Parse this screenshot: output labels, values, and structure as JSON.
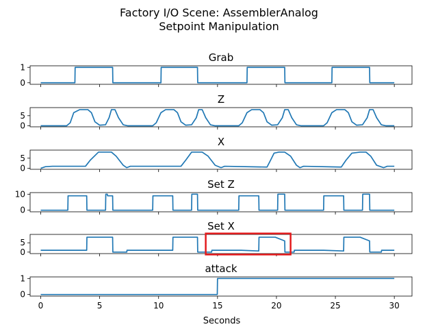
{
  "chart_data": {
    "type": "line",
    "title_lines": [
      "Factory I/O Scene: AssemblerAnalog",
      "Setpoint Manipulation"
    ],
    "xlabel": "Seconds",
    "xlim": [
      -0.9,
      31.5
    ],
    "xticks": [
      0,
      5,
      10,
      15,
      20,
      25,
      30
    ],
    "line_color": "#1f77b4",
    "highlight_color": "#e31a1c",
    "highlight": {
      "subplot": "Set X",
      "x": [
        14,
        21.2
      ],
      "y": [
        -1.3,
        10
      ]
    },
    "subplots": [
      {
        "title": "Grab",
        "ylim": [
          -0.1,
          1.1
        ],
        "yticks": [
          0,
          1
        ],
        "x": [
          0,
          2.9,
          2.92,
          6.1,
          6.12,
          10.2,
          10.22,
          13.3,
          13.32,
          17.5,
          17.52,
          20.7,
          20.72,
          24.7,
          24.72,
          27.9,
          27.92,
          30
        ],
        "y": [
          0,
          0,
          1,
          1,
          0,
          0,
          1,
          1,
          0,
          0,
          1,
          1,
          0,
          0,
          1,
          1,
          0,
          0
        ]
      },
      {
        "title": "Z",
        "ylim": [
          -0.5,
          9
        ],
        "yticks": [
          0,
          5
        ],
        "x": [
          0,
          2.2,
          2.5,
          2.8,
          3.3,
          4.0,
          4.3,
          4.6,
          5.0,
          5.5,
          5.8,
          6.0,
          6.3,
          6.6,
          7.0,
          7.4,
          9.5,
          9.8,
          10.2,
          10.6,
          11.3,
          11.6,
          11.9,
          12.3,
          12.8,
          13.2,
          13.4,
          13.7,
          14.0,
          14.4,
          14.8,
          16.8,
          17.1,
          17.5,
          17.9,
          18.6,
          18.9,
          19.2,
          19.6,
          20.1,
          20.5,
          20.7,
          21.0,
          21.3,
          21.7,
          22.1,
          24.0,
          24.3,
          24.7,
          25.1,
          25.8,
          26.1,
          26.4,
          26.8,
          27.3,
          27.7,
          27.9,
          28.2,
          28.5,
          28.9,
          29.3,
          30
        ],
        "y": [
          0,
          0,
          1.5,
          6.5,
          8,
          8,
          6.5,
          2,
          0.3,
          0.5,
          4,
          8,
          8,
          4,
          0.5,
          0,
          0,
          1.5,
          6.5,
          8,
          8,
          6.5,
          2,
          0.3,
          0.5,
          4,
          8,
          8,
          4,
          0.5,
          0,
          0,
          1.5,
          6.5,
          8,
          8,
          6.5,
          2,
          0.3,
          0.5,
          4,
          8,
          8,
          4,
          0.5,
          0,
          0,
          1.5,
          6.5,
          8,
          8,
          6.5,
          2,
          0.3,
          0.5,
          4,
          8,
          8,
          4,
          0.5,
          0,
          0
        ]
      },
      {
        "title": "X",
        "ylim": [
          -0.5,
          9
        ],
        "yticks": [
          0,
          5
        ],
        "x": [
          0,
          0.4,
          1.0,
          3.8,
          4.2,
          4.9,
          6.0,
          6.4,
          7.0,
          7.3,
          7.6,
          11.9,
          12.3,
          12.8,
          13.7,
          14.2,
          14.8,
          15.3,
          15.6,
          19.2,
          19.5,
          19.8,
          20.2,
          20.7,
          21.2,
          21.7,
          22.0,
          22.3,
          25.5,
          25.9,
          26.4,
          27.1,
          27.6,
          28.0,
          28.5,
          29.1,
          29.4,
          30
        ],
        "y": [
          0,
          0.8,
          1,
          1,
          4,
          8,
          8,
          6,
          1.5,
          0.3,
          1,
          1,
          4,
          8,
          8,
          6,
          1.5,
          0.3,
          1,
          0.6,
          4,
          7.5,
          8,
          8,
          6,
          1.5,
          0.3,
          1,
          0.6,
          4,
          7.5,
          8,
          8,
          6,
          1.5,
          0.3,
          1,
          1
        ]
      },
      {
        "title": "Set Z",
        "ylim": [
          -1,
          11
        ],
        "yticks": [
          0,
          10
        ],
        "x": [
          0,
          2.3,
          2.32,
          3.9,
          3.92,
          5.5,
          5.52,
          5.65,
          5.67,
          6.1,
          6.12,
          9.5,
          9.52,
          11.2,
          11.22,
          12.8,
          12.82,
          13.3,
          13.32,
          16.8,
          16.82,
          18.5,
          18.52,
          20.1,
          20.12,
          20.7,
          20.72,
          24.0,
          24.02,
          25.7,
          25.72,
          27.3,
          27.32,
          27.9,
          27.92,
          30
        ],
        "y": [
          0,
          0,
          9,
          9,
          0,
          0,
          10,
          10,
          9,
          9,
          0,
          0,
          9,
          9,
          0,
          0,
          10,
          10,
          0,
          0,
          9,
          9,
          0,
          0,
          10,
          10,
          0,
          0,
          9,
          9,
          0,
          0,
          10,
          10,
          0,
          0
        ]
      },
      {
        "title": "Set X",
        "ylim": [
          -0.8,
          9.5
        ],
        "yticks": [
          0,
          5
        ],
        "x": [
          0,
          3.9,
          3.92,
          6.1,
          6.12,
          7.3,
          7.32,
          11.2,
          11.22,
          13.3,
          13.32,
          14.5,
          14.52,
          17.0,
          18.5,
          18.52,
          19.9,
          20.7,
          20.72,
          21.5,
          21.52,
          24.0,
          25.7,
          25.72,
          27.1,
          27.9,
          27.92,
          28.9,
          28.92,
          30
        ],
        "y": [
          1,
          1,
          8,
          8,
          0,
          0,
          1,
          1,
          8,
          8,
          0,
          0,
          1,
          1,
          0.6,
          8,
          8,
          6,
          0,
          0,
          1,
          1,
          0.6,
          8,
          8,
          6,
          0,
          0,
          1,
          1
        ]
      },
      {
        "title": "attack",
        "ylim": [
          -0.1,
          1.1
        ],
        "yticks": [
          0,
          1
        ],
        "x": [
          0,
          14.98,
          15.0,
          30
        ],
        "y": [
          0,
          0,
          1,
          1
        ]
      }
    ]
  }
}
